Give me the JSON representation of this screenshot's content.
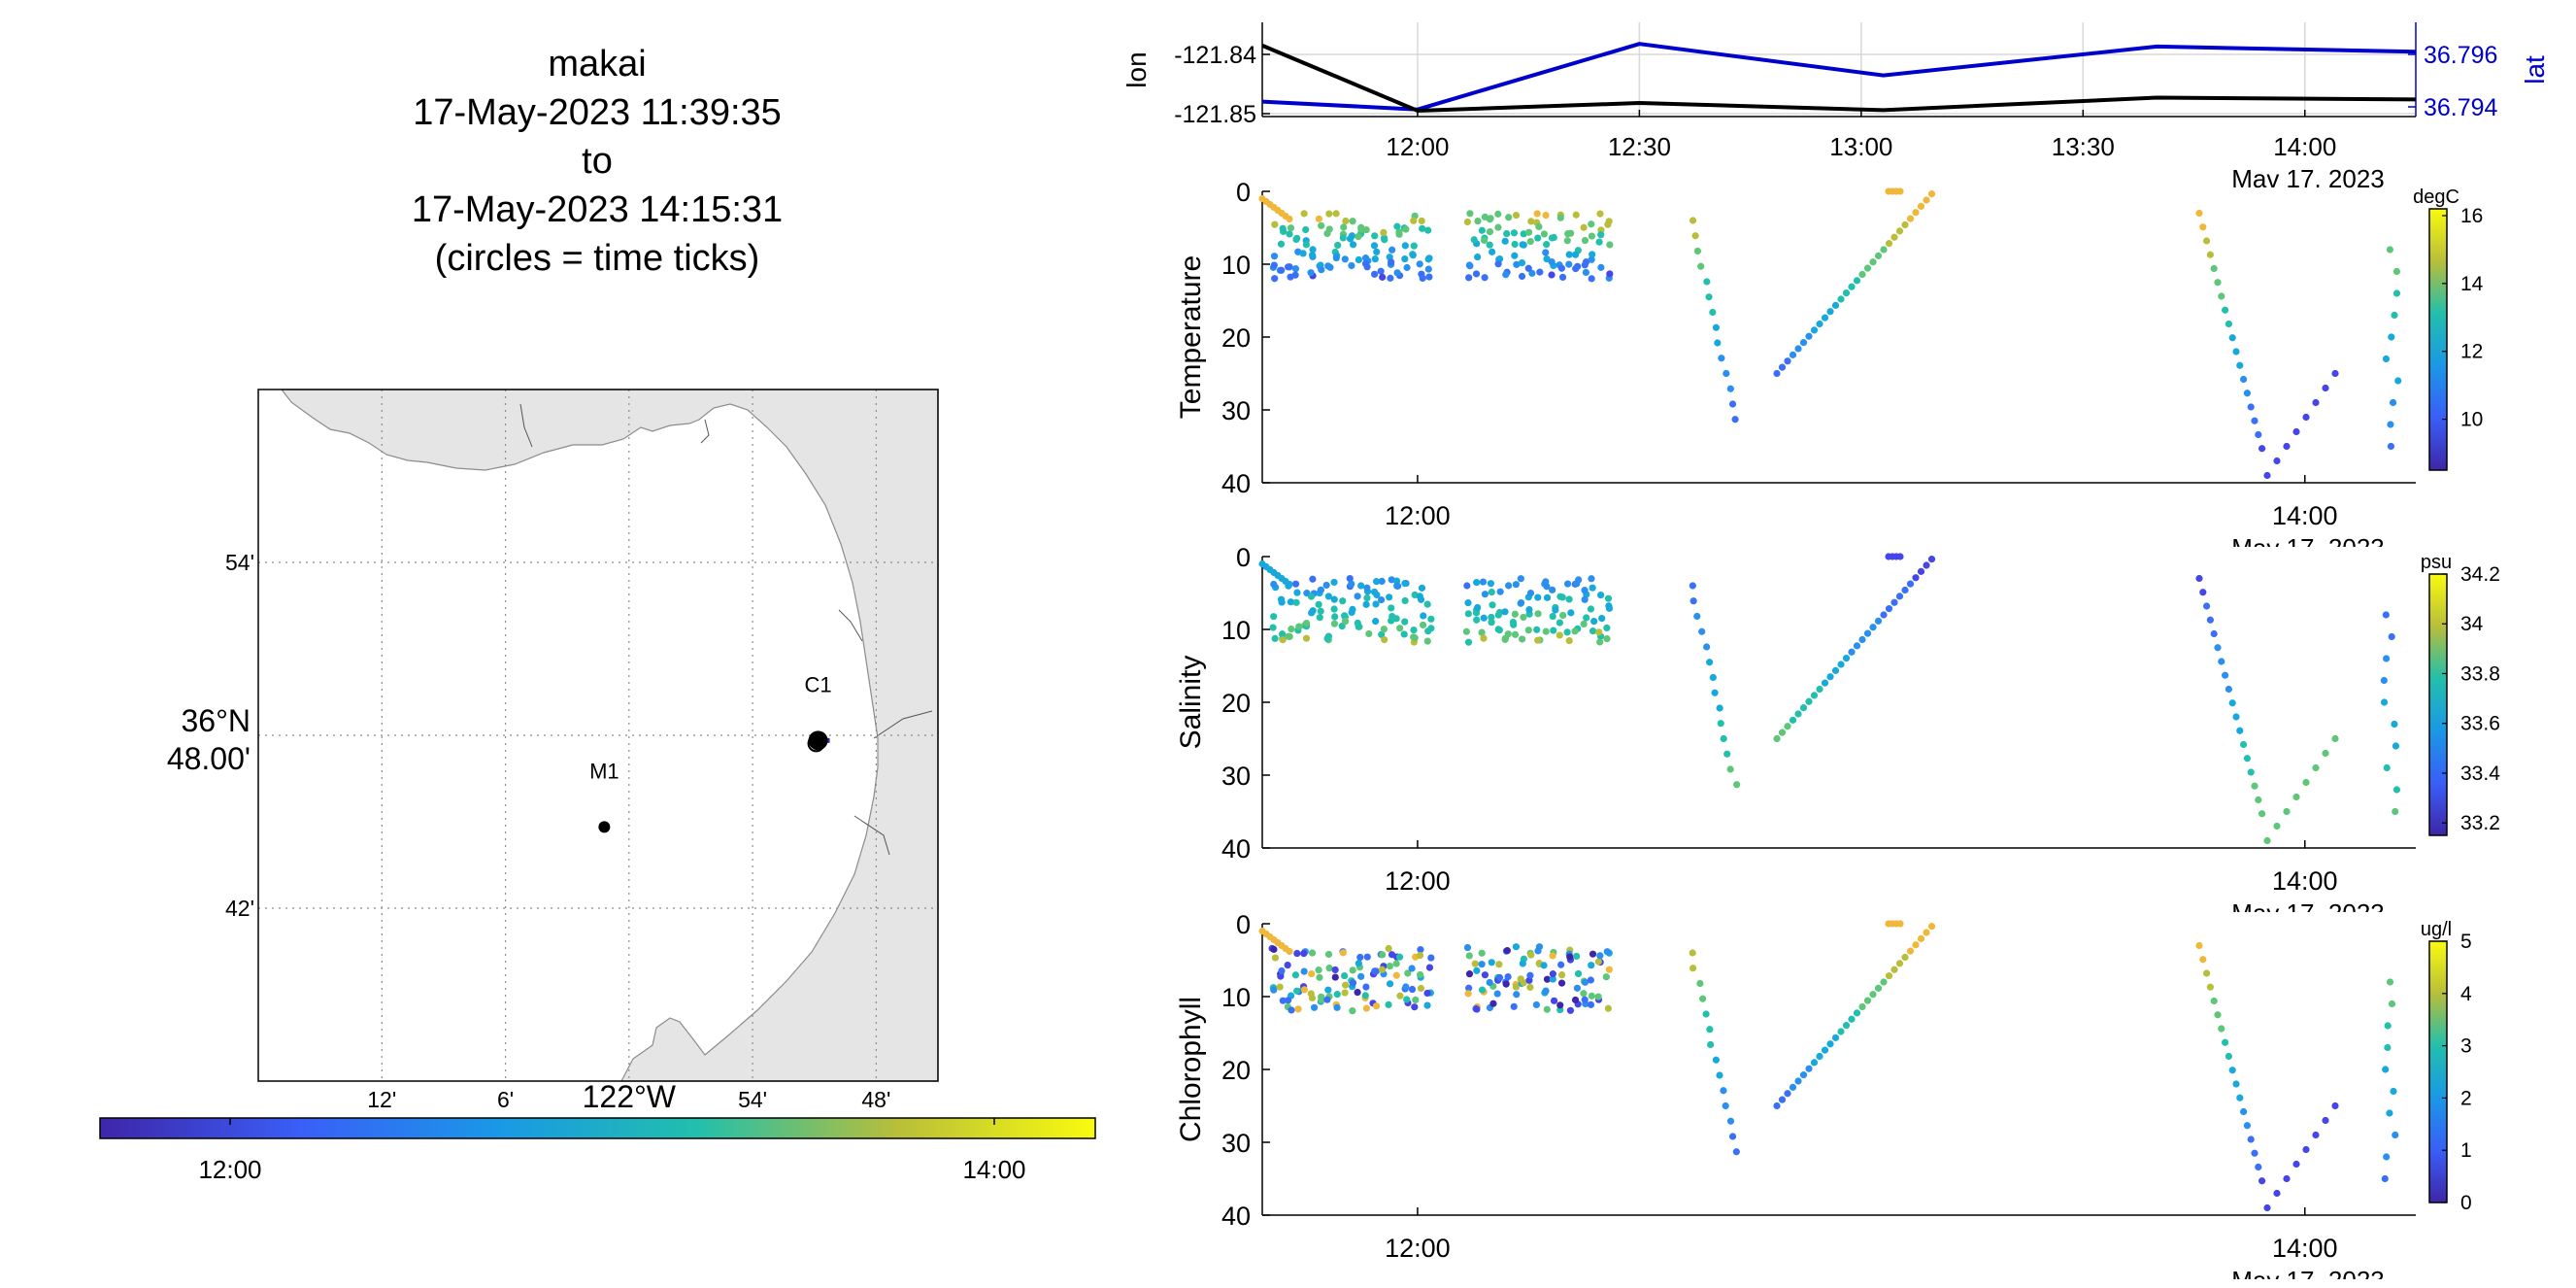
{
  "title": {
    "lines": [
      "makai",
      "17-May-2023 11:39:35",
      "to",
      "17-May-2023 14:15:31",
      "(circles = time ticks)"
    ]
  },
  "map": {
    "lat_ticks": [
      {
        "value": 36.9,
        "label": "54'"
      },
      {
        "value": 36.8,
        "label": [
          "36°N",
          "48.00'"
        ]
      },
      {
        "value": 36.7,
        "label": "42'"
      }
    ],
    "lon_ticks": [
      {
        "value": -122.2,
        "label": "12'"
      },
      {
        "value": -122.1,
        "label": "6'"
      },
      {
        "value": -122.0,
        "label": "122°W"
      },
      {
        "value": -121.9,
        "label": "54'"
      },
      {
        "value": -121.8,
        "label": "48'"
      }
    ],
    "lon_range": [
      -122.3,
      -121.75
    ],
    "lat_range": [
      36.6,
      37.0
    ],
    "stations": [
      {
        "name": "M1",
        "lon": -122.02,
        "lat": 36.747
      },
      {
        "name": "C1",
        "lon": -121.847,
        "lat": 36.797
      }
    ],
    "land_color": "#e5e5e5",
    "time_colorbar": {
      "ticks": [
        "12:00",
        "14:00"
      ],
      "range": [
        "11:39",
        "14:15"
      ]
    }
  },
  "track_panel": {
    "ylabel_left": "lon",
    "ylabel_right": "lat",
    "left_ticks": [
      "-121.84",
      "-121.85"
    ],
    "right_ticks": [
      "36.796",
      "36.794"
    ],
    "x_ticks": [
      "12:00",
      "12:30",
      "13:00",
      "13:30",
      "14:00"
    ],
    "date_label": "Mav 17. 2023",
    "lon_color": "#000000",
    "lat_color": "#0000cc"
  },
  "chart_data": [
    {
      "type": "line",
      "x": [
        "11:39",
        "12:00",
        "12:30",
        "13:03",
        "13:40",
        "14:15"
      ],
      "series": [
        {
          "name": "lon",
          "values": [
            -121.8385,
            -121.8495,
            -121.8482,
            -121.8494,
            -121.8473,
            -121.8476
          ]
        },
        {
          "name": "lat",
          "values": [
            36.7942,
            36.7939,
            36.7964,
            36.7952,
            36.7963,
            36.7961
          ]
        }
      ]
    },
    {
      "type": "scatter",
      "ylabel": "Temperature",
      "ylim": [
        40,
        0
      ],
      "y_ticks": [
        "0",
        "10",
        "20",
        "30",
        "40"
      ],
      "x_ticks": [
        "12:00",
        "14:00"
      ],
      "colorbar": {
        "unit": "degC",
        "ticks": [
          "16",
          "14",
          "12",
          "10"
        ],
        "range": [
          8.5,
          16.2
        ]
      },
      "profiles": "depth 0-40 m; yo-yo profiles from 11:40 to 14:15, values ~9-16 degC"
    },
    {
      "type": "scatter",
      "ylabel": "Salinity",
      "ylim": [
        40,
        0
      ],
      "y_ticks": [
        "0",
        "10",
        "20",
        "30",
        "40"
      ],
      "x_ticks": [
        "12:00",
        "14:00"
      ],
      "colorbar": {
        "unit": "psu",
        "ticks": [
          "34.2",
          "34",
          "33.8",
          "33.6",
          "33.4",
          "33.2"
        ],
        "range": [
          33.15,
          34.2
        ]
      }
    },
    {
      "type": "scatter",
      "ylabel": "Chlorophyll",
      "ylim": [
        40,
        0
      ],
      "y_ticks": [
        "0",
        "10",
        "20",
        "30",
        "40"
      ],
      "x_ticks": [
        "12:00",
        "14:00"
      ],
      "colorbar": {
        "unit": "ug/l",
        "ticks": [
          "5",
          "4",
          "3",
          "2",
          "1",
          "0"
        ],
        "range": [
          0,
          5
        ]
      }
    }
  ]
}
